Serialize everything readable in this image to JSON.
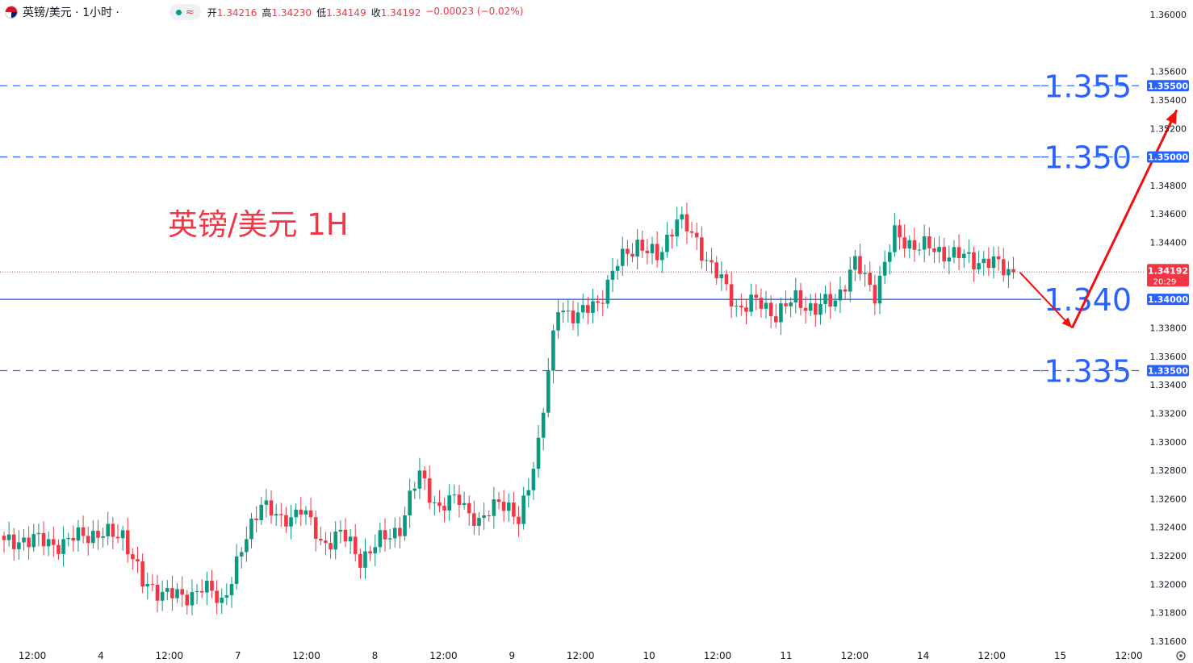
{
  "header": {
    "symbol": "英镑/美元 · 1小时 ·",
    "open_label": "开",
    "open": "1.34216",
    "high_label": "高",
    "high": "1.34230",
    "low_label": "低",
    "low": "1.34149",
    "close_label": "收",
    "close": "1.34192",
    "change": "−0.00023 (−0.02%)"
  },
  "annotation_title": "英镑/美元 1H",
  "colors": {
    "up": "#089981",
    "down": "#f23645",
    "level": "#2962ff",
    "arrow": "#f20f0f",
    "title": "#f23645"
  },
  "chart_data": {
    "type": "candlestick",
    "ylim": [
      1.316,
      1.36
    ],
    "y_ticks": [
      "1.36000",
      "1.35600",
      "1.35400",
      "1.35200",
      "1.34800",
      "1.34600",
      "1.34400",
      "1.33800",
      "1.33600",
      "1.33400",
      "1.33200",
      "1.33000",
      "1.32800",
      "1.32600",
      "1.32400",
      "1.32200",
      "1.32000",
      "1.31800",
      "1.31600"
    ],
    "x_labels": [
      "12:00",
      "4",
      "12:00",
      "7",
      "12:00",
      "8",
      "12:00",
      "9",
      "12:00",
      "10",
      "12:00",
      "11",
      "12:00",
      "14",
      "12:00",
      "15",
      "12:00"
    ],
    "levels": [
      {
        "value": 1.355,
        "label": "1.355",
        "axis": "1.35500",
        "style": "dashed"
      },
      {
        "value": 1.35,
        "label": "1.350",
        "axis": "1.35000",
        "style": "dashed"
      },
      {
        "value": 1.34,
        "label": "1.340",
        "axis": "1.34000",
        "style": "solid"
      },
      {
        "value": 1.335,
        "label": "1.335",
        "axis": "1.33500",
        "style": "dashed"
      }
    ],
    "last_price": {
      "value": 1.34192,
      "label": "1.34192",
      "countdown": "20:29"
    },
    "projection_path": [
      [
        1.3419,
        0
      ],
      [
        1.338,
        9
      ],
      [
        1.3533,
        27
      ]
    ],
    "anchors": [
      1.3228,
      1.3232,
      1.323,
      1.3228,
      1.3236,
      1.3234,
      1.3236,
      1.32,
      1.3195,
      1.319,
      1.3198,
      1.3188,
      1.3222,
      1.326,
      1.3242,
      1.3255,
      1.3228,
      1.3236,
      1.3218,
      1.323,
      1.324,
      1.3278,
      1.3252,
      1.3262,
      1.324,
      1.3262,
      1.3242,
      1.33,
      1.3395,
      1.3388,
      1.3398,
      1.3425,
      1.344,
      1.3428,
      1.3458,
      1.344,
      1.3418,
      1.3395,
      1.3398,
      1.339,
      1.34,
      1.3393,
      1.34,
      1.3425,
      1.3405,
      1.3445,
      1.3438,
      1.3435,
      1.3431,
      1.3428,
      1.3425,
      1.3419
    ],
    "candles_per_segment": 4
  }
}
